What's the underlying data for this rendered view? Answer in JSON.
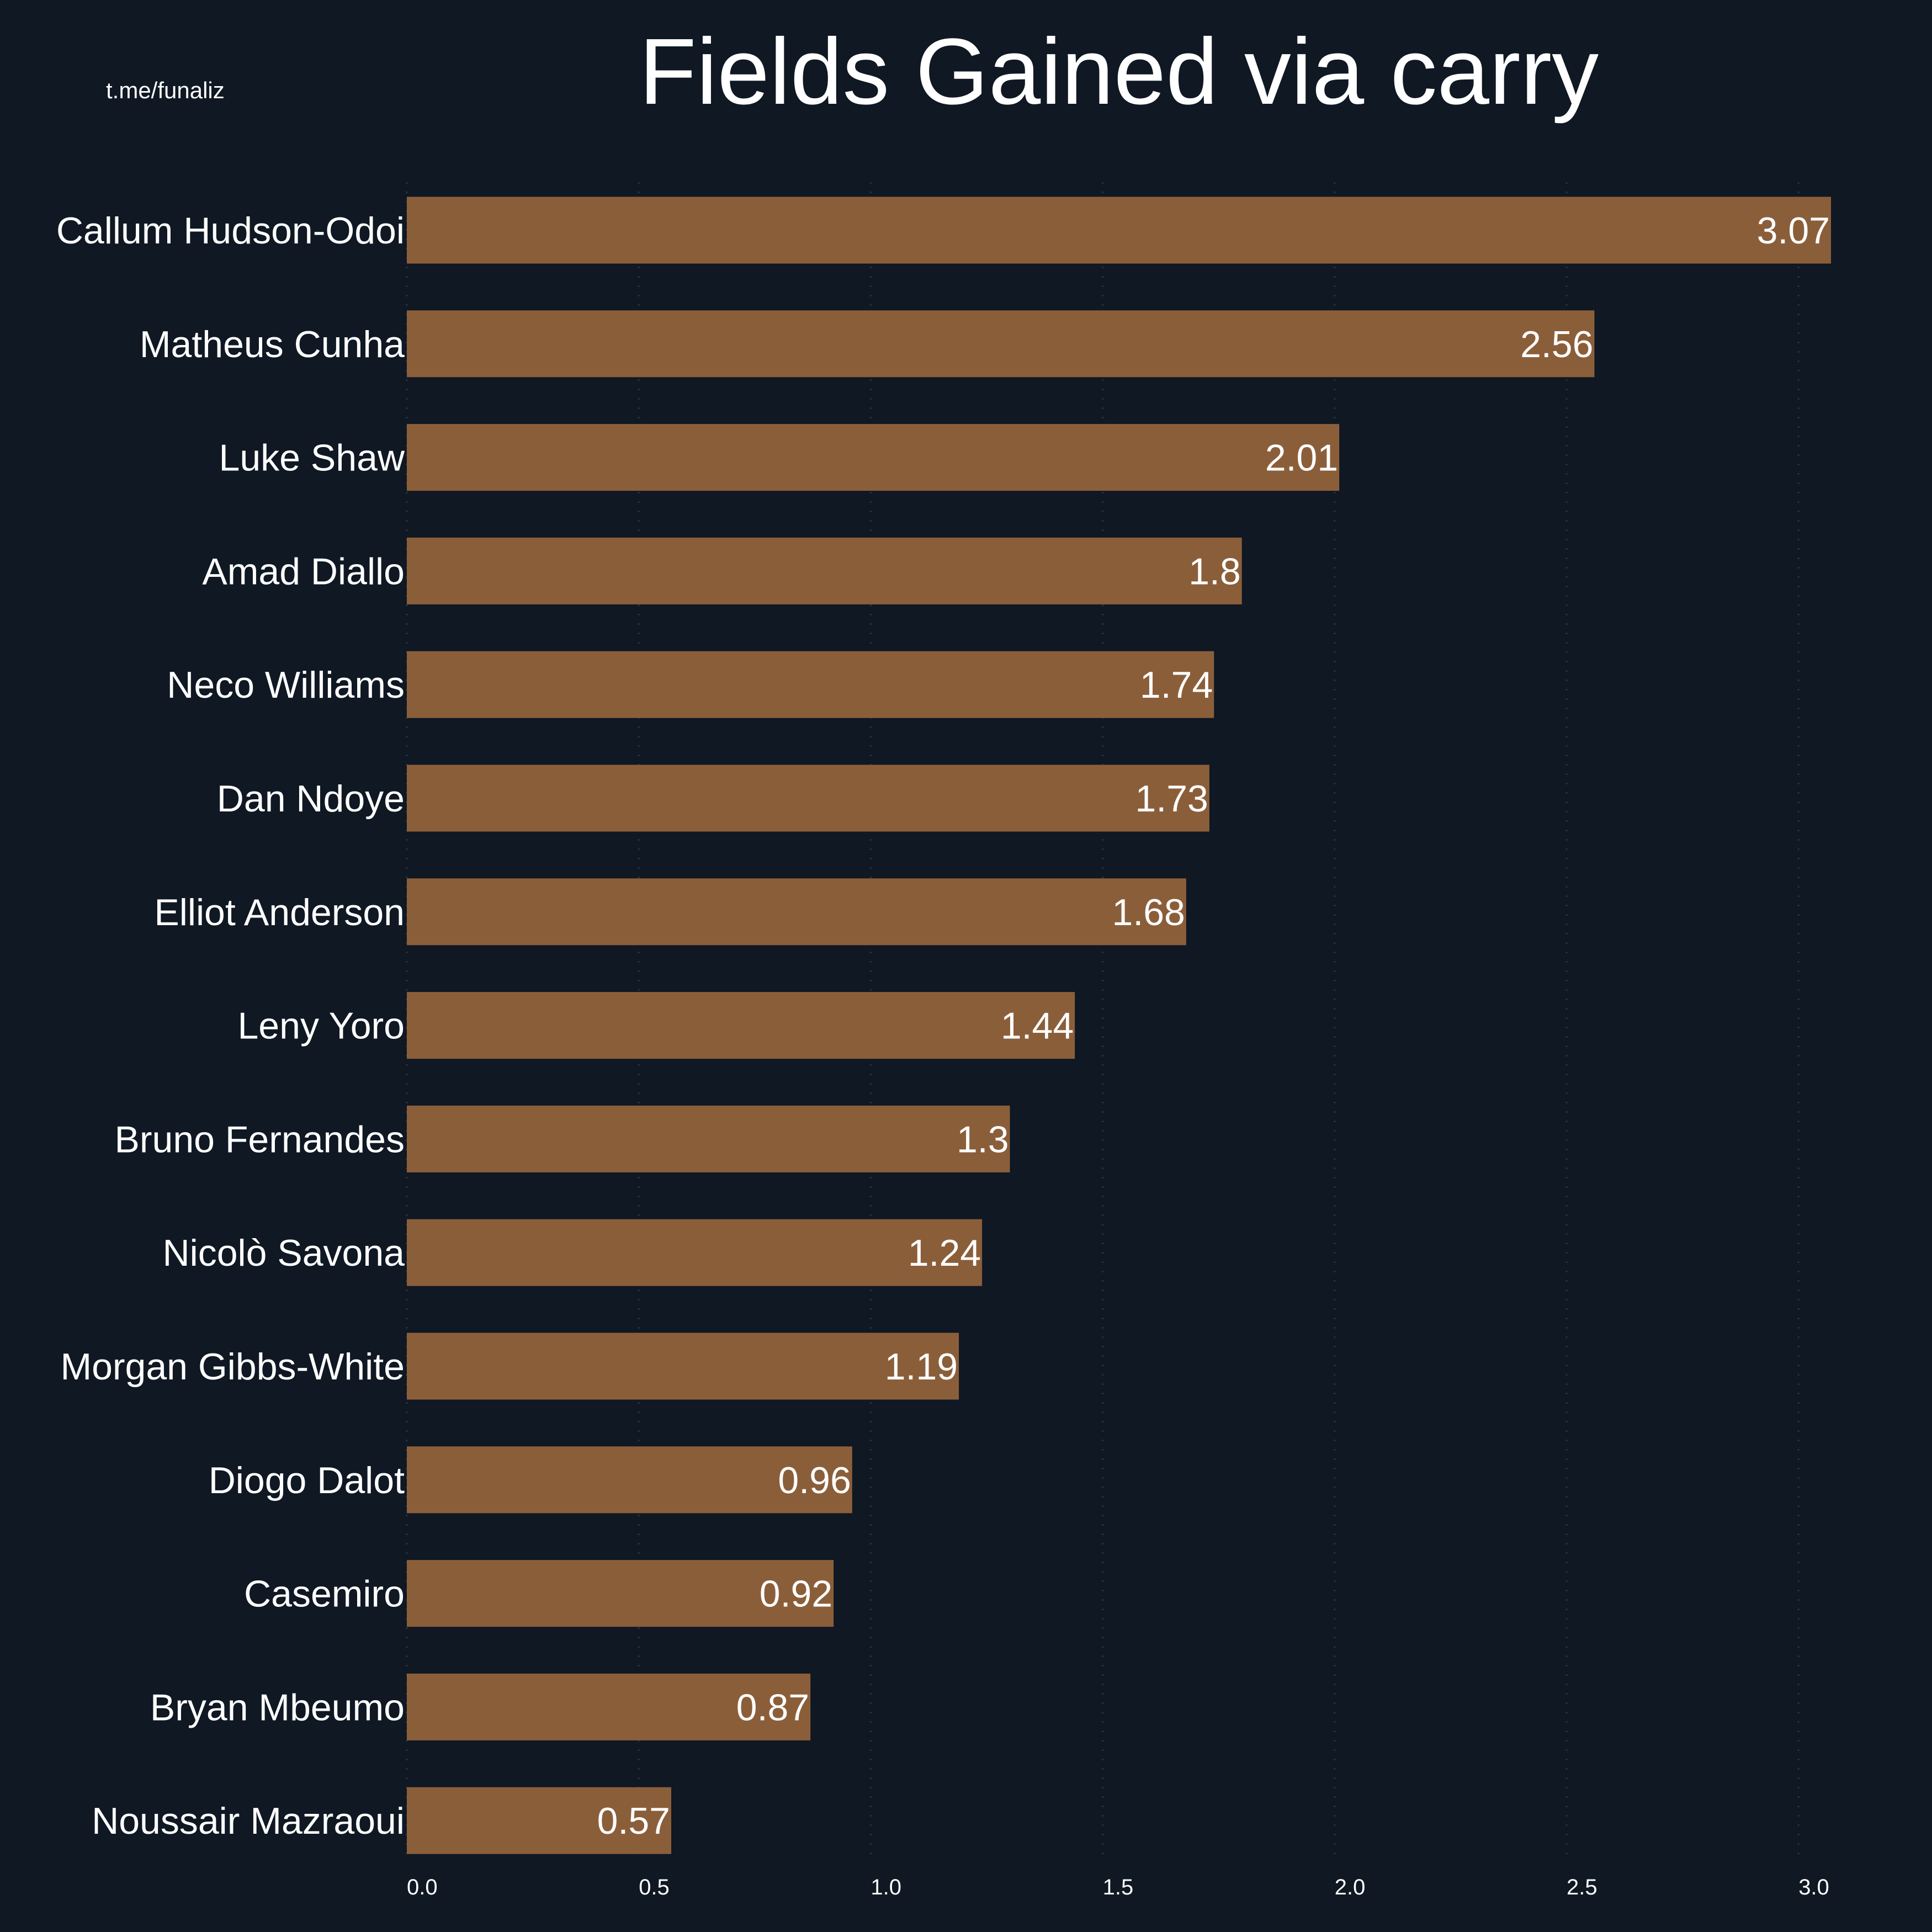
{
  "chart_data": {
    "type": "bar",
    "orientation": "horizontal",
    "title": "Fields Gained via carry",
    "watermark": "t.me/funaliz",
    "categories": [
      "Callum Hudson-Odoi",
      "Matheus Cunha",
      "Luke Shaw",
      "Amad Diallo",
      "Neco Williams",
      "Dan Ndoye",
      "Elliot Anderson",
      "Leny Yoro",
      "Bruno Fernandes",
      "Nicolò Savona",
      "Morgan Gibbs-White",
      "Diogo Dalot",
      "Casemiro",
      "Bryan Mbeumo",
      "Noussair Mazraoui"
    ],
    "values": [
      3.07,
      2.56,
      2.01,
      1.8,
      1.74,
      1.73,
      1.68,
      1.44,
      1.3,
      1.24,
      1.19,
      0.96,
      0.92,
      0.87,
      0.57
    ],
    "value_labels": [
      "3.07",
      "2.56",
      "2.01",
      "1.8",
      "1.74",
      "1.73",
      "1.68",
      "1.44",
      "1.3",
      "1.24",
      "1.19",
      "0.96",
      "0.92",
      "0.87",
      "0.57"
    ],
    "xticks": [
      "0.0",
      "0.5",
      "1.0",
      "1.5",
      "2.0",
      "2.5",
      "3.0"
    ],
    "xlim": [
      0,
      3.3
    ],
    "grid": "vertical dotted",
    "colors": {
      "background": "#0f1823",
      "bar": "#8b5e3a",
      "text": "#ffffff"
    }
  }
}
